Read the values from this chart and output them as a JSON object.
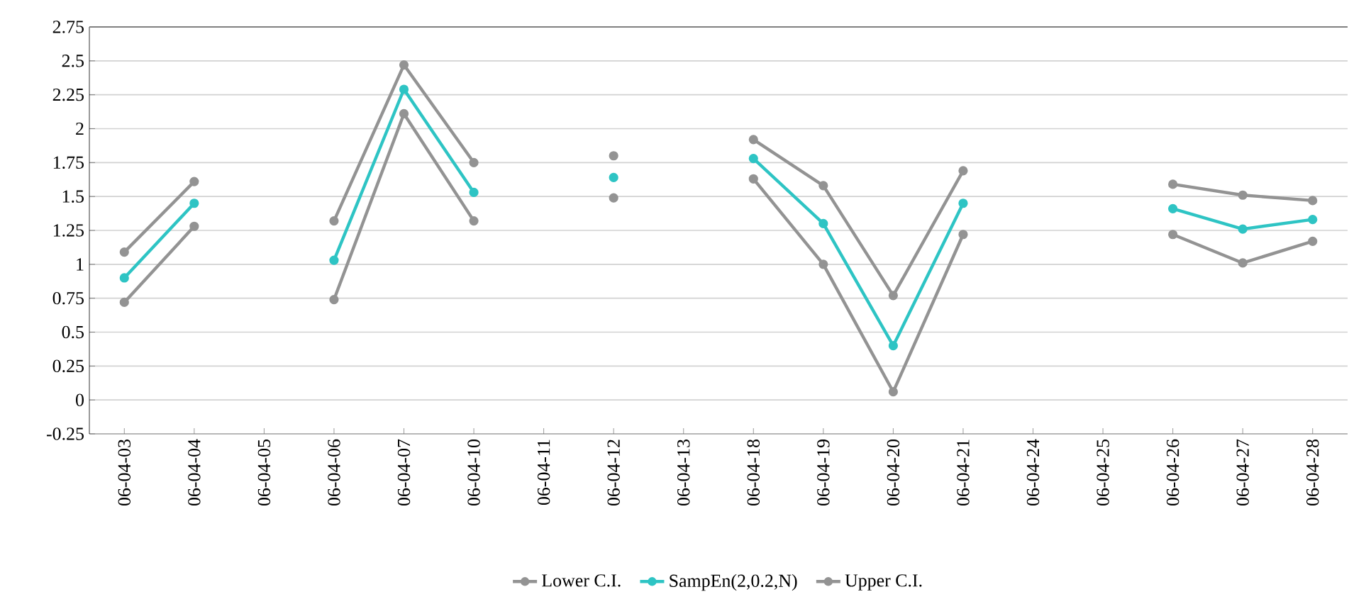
{
  "chart_data": {
    "type": "line",
    "categories": [
      "06-04-03",
      "06-04-04",
      "06-04-05",
      "06-04-06",
      "06-04-07",
      "06-04-10",
      "06-04-11",
      "06-04-12",
      "06-04-13",
      "06-04-18",
      "06-04-19",
      "06-04-20",
      "06-04-21",
      "06-04-24",
      "06-04-25",
      "06-04-26",
      "06-04-27",
      "06-04-28"
    ],
    "series": [
      {
        "name": "Lower C.I.",
        "color": "#939393",
        "values": [
          0.72,
          1.28,
          null,
          0.74,
          2.11,
          1.32,
          null,
          1.49,
          null,
          1.63,
          1.0,
          0.06,
          1.22,
          null,
          null,
          1.22,
          1.01,
          1.17
        ]
      },
      {
        "name": "SampEn(2,0.2,N)",
        "color": "#2ec4c4",
        "values": [
          0.9,
          1.45,
          null,
          1.03,
          2.29,
          1.53,
          null,
          1.64,
          null,
          1.78,
          1.3,
          0.4,
          1.45,
          null,
          null,
          1.41,
          1.26,
          1.33
        ]
      },
      {
        "name": "Upper C.I.",
        "color": "#939393",
        "values": [
          1.09,
          1.61,
          null,
          1.32,
          2.47,
          1.75,
          null,
          1.8,
          null,
          1.92,
          1.58,
          0.77,
          1.69,
          null,
          null,
          1.59,
          1.51,
          1.47
        ]
      }
    ],
    "ylim": [
      -0.25,
      2.75
    ],
    "yticks": [
      -0.25,
      0,
      0.25,
      0.5,
      0.75,
      1,
      1.25,
      1.5,
      1.75,
      2,
      2.25,
      2.5,
      2.75
    ],
    "grid": "y",
    "legend": "bottom",
    "marker": "circle",
    "line_style": "solid"
  }
}
